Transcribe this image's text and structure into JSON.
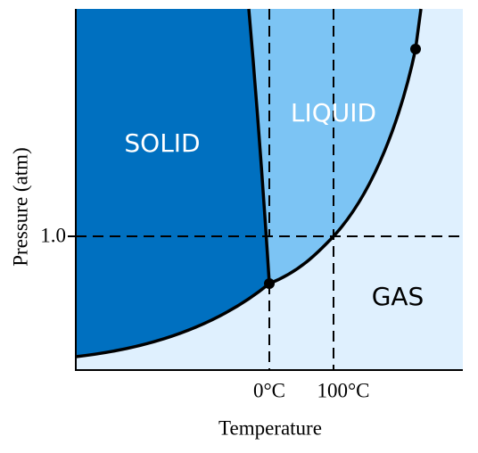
{
  "regions": {
    "solid": "SOLID",
    "liquid": "LIQUID",
    "gas": "GAS"
  },
  "axes": {
    "y_label": "Pressure (atm)",
    "x_label": "Temperature",
    "y_tick": "1.0",
    "x_ticks": [
      "0°C",
      "100°C"
    ]
  }
}
